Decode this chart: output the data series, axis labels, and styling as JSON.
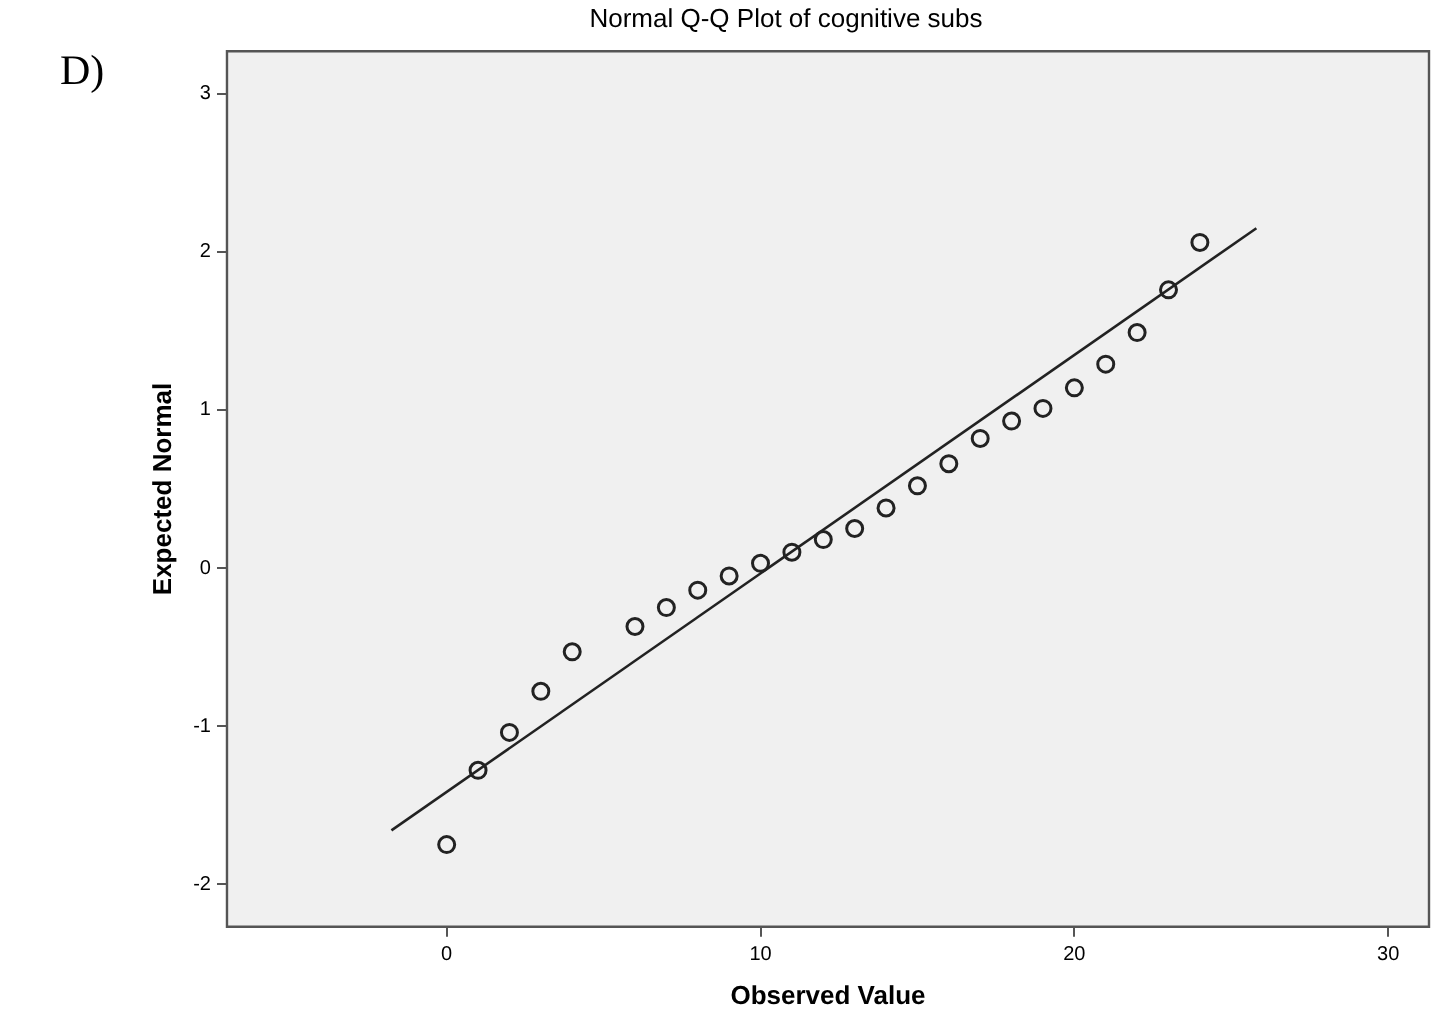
{
  "chart_data": {
    "type": "scatter",
    "title": "Normal Q-Q Plot of cognitive subs",
    "xlabel": "Observed Value",
    "ylabel": "Expected Normal",
    "annotations": [
      "D)"
    ],
    "xlim": [
      -7,
      31.3
    ],
    "xticks": [
      0,
      10,
      20,
      30
    ],
    "ylim": [
      -2.27,
      3.27
    ],
    "yticks": [
      -2,
      -1,
      0,
      1,
      2,
      3
    ],
    "grid": false,
    "legend": false,
    "marker": "circle",
    "series": [
      {
        "type": "scatter",
        "color": "#222222",
        "x": [
          0,
          1,
          2,
          3,
          4,
          6,
          7,
          8,
          9,
          10,
          11,
          12,
          13,
          14,
          15,
          16,
          17,
          18,
          19,
          20,
          21,
          22,
          23,
          24
        ],
        "values": [
          -1.75,
          -1.28,
          -1.04,
          -0.78,
          -0.53,
          -0.37,
          -0.25,
          -0.14,
          -0.05,
          0.03,
          0.1,
          0.18,
          0.25,
          0.38,
          0.52,
          0.66,
          0.82,
          0.93,
          1.01,
          1.14,
          1.29,
          1.49,
          1.76,
          2.06
        ]
      },
      {
        "type": "line",
        "color": "#222222",
        "marker": "none",
        "x": [
          -1.76,
          25.8
        ],
        "values": [
          -1.66,
          2.15
        ]
      }
    ]
  }
}
